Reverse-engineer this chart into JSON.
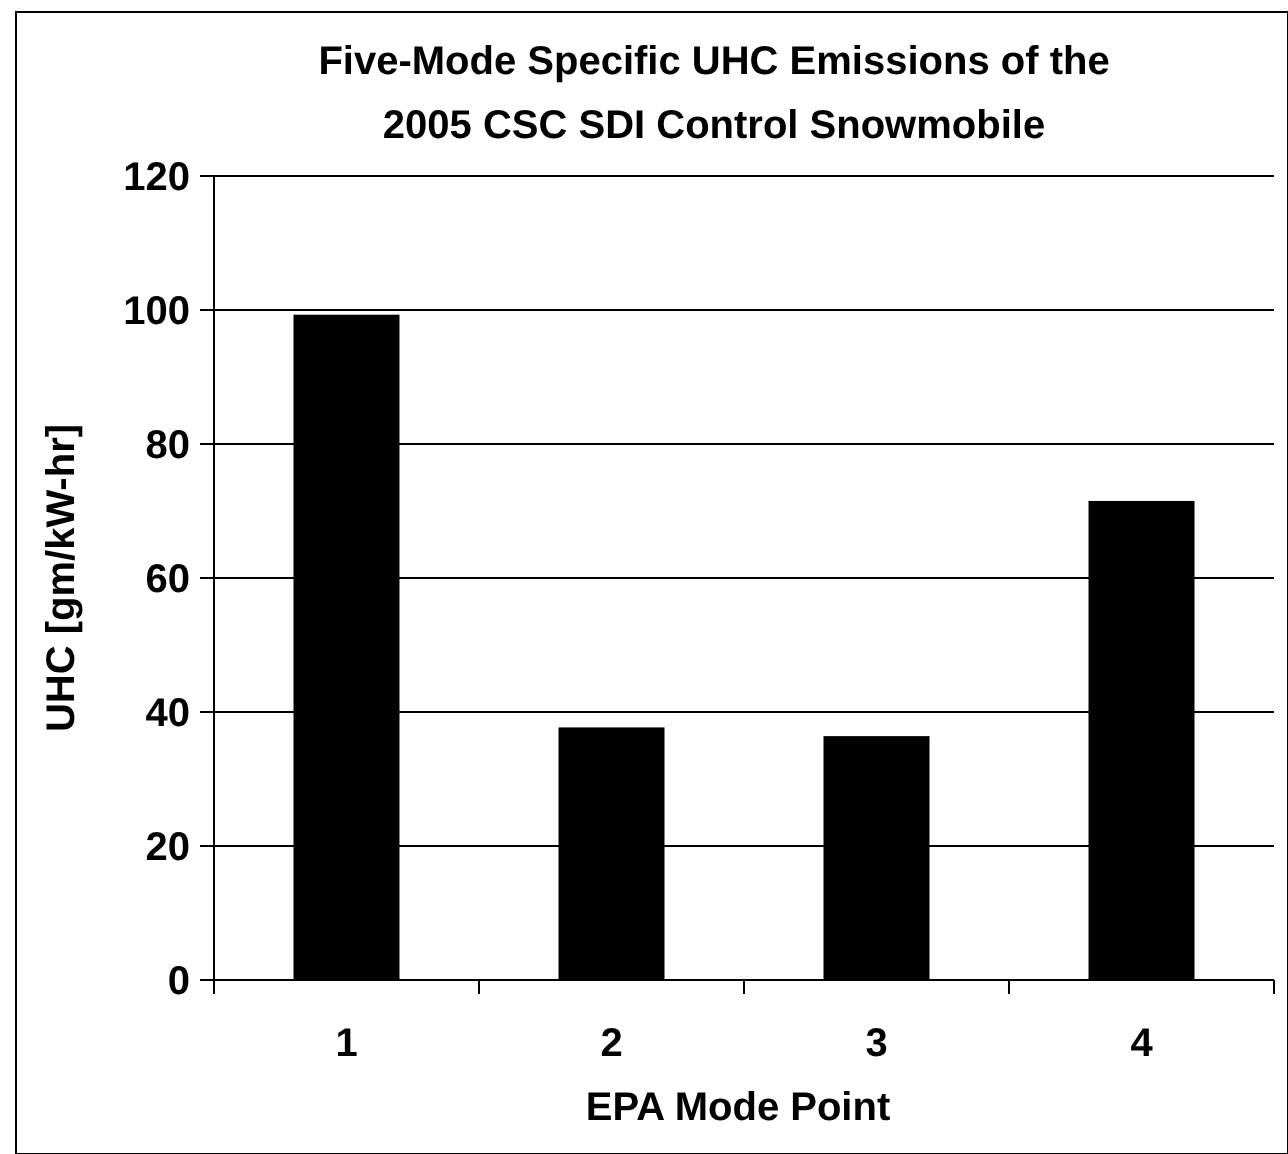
{
  "chart_data": {
    "type": "bar",
    "title": "Five-Mode Specific UHC Emissions of the\n2005 CSC SDI Control Snowmobile",
    "xlabel": "EPA Mode Point",
    "ylabel": "UHC [gm/kW-hr]",
    "categories": [
      "1",
      "2",
      "3",
      "4"
    ],
    "values": [
      99.3,
      37.7,
      36.4,
      71.5
    ],
    "color": "#000000",
    "ylim": [
      0,
      120
    ],
    "yticks": [
      0,
      20,
      40,
      60,
      80,
      100,
      120
    ],
    "grid": "y"
  }
}
